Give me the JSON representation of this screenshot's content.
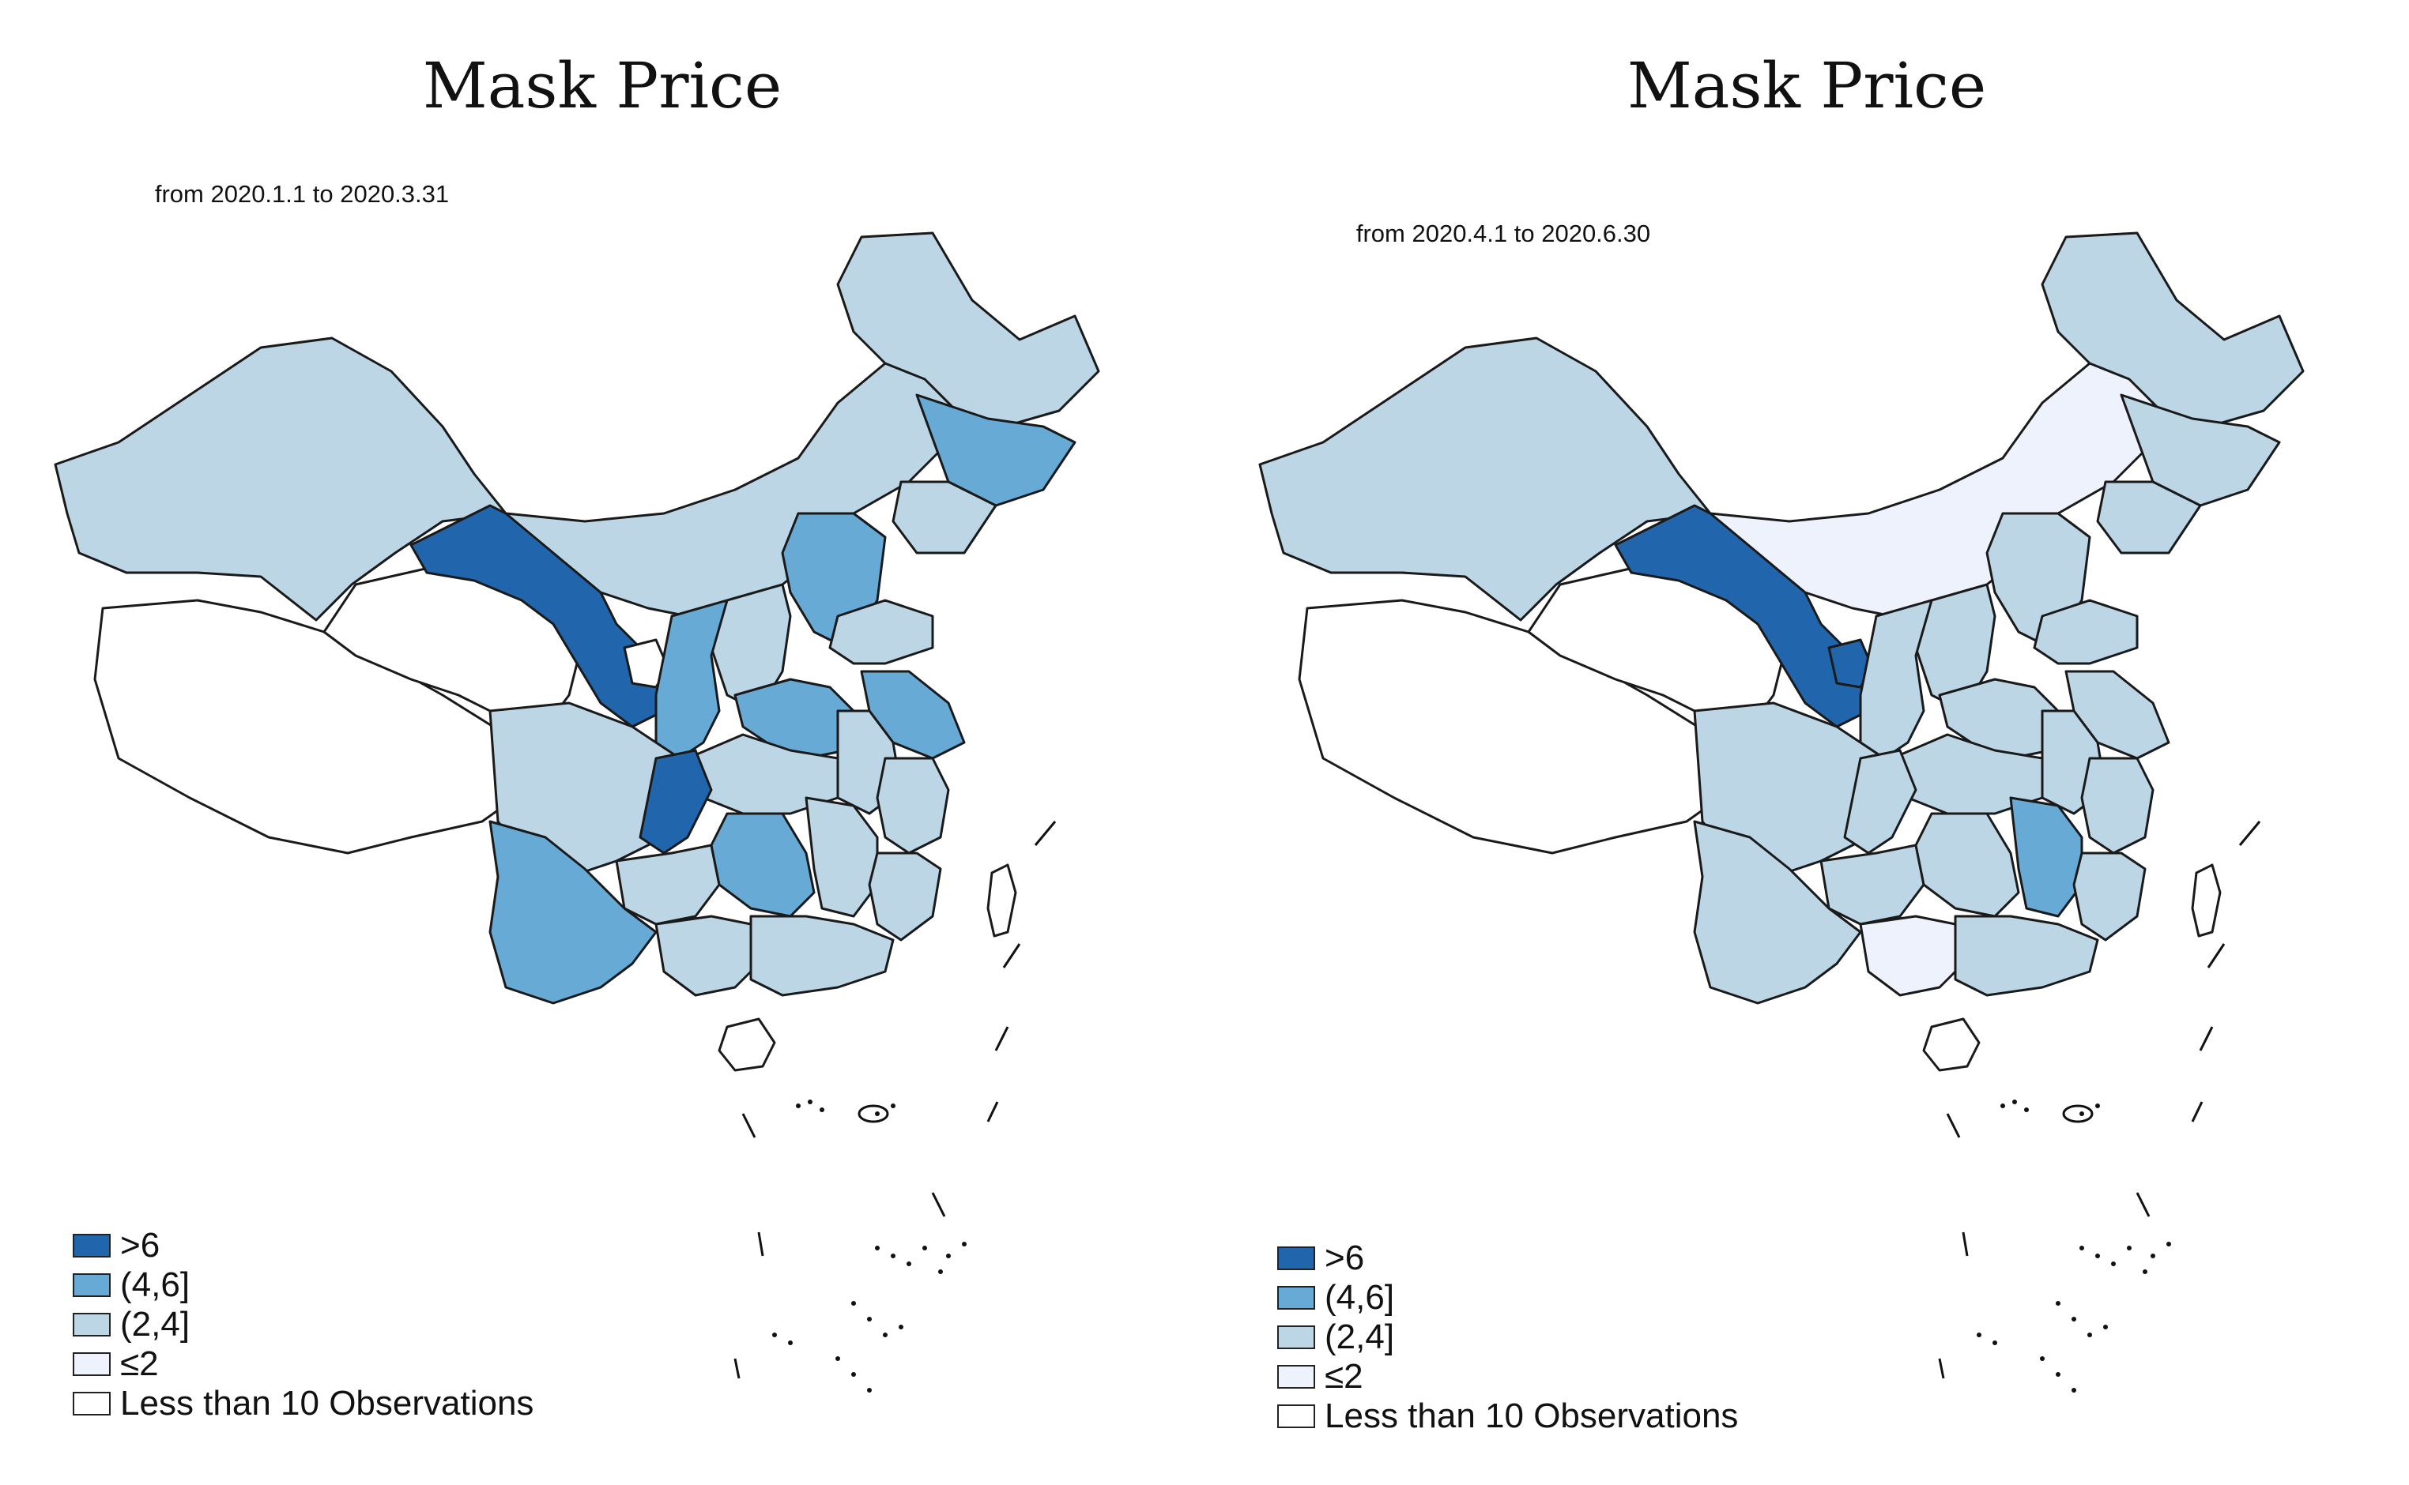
{
  "colors": {
    "gt6": "#2166ac",
    "4to6": "#67aad6",
    "2to4": "#bcd6e6",
    "le2": "#eef2fc",
    "few": "#ffffff",
    "border": "#1a1a1a"
  },
  "legend": [
    {
      "key": "gt6",
      "label": ">6"
    },
    {
      "key": "4to6",
      "label": "(4,6]"
    },
    {
      "key": "2to4",
      "label": "(2,4]"
    },
    {
      "key": "le2",
      "label": "≤2"
    },
    {
      "key": "few",
      "label": "Less than 10 Observations"
    }
  ],
  "panels": [
    {
      "title": "Mask Price",
      "subtitle": "from 2020.1.1 to 2020.3.31",
      "provinces": {
        "xinjiang": "2to4",
        "tibet": "few",
        "qinghai": "few",
        "gansu": "gt6",
        "inner_mongolia": "2to4",
        "heilongjiang": "2to4",
        "jilin": "4to6",
        "liaoning": "2to4",
        "beijing_hebei": "4to6",
        "shanxi": "2to4",
        "shaanxi": "4to6",
        "ningxia": "few",
        "henan": "4to6",
        "shandong": "2to4",
        "jiangsu": "4to6",
        "anhui": "2to4",
        "hubei": "2to4",
        "sichuan": "2to4",
        "chongqing": "gt6",
        "guizhou": "2to4",
        "yunnan": "4to6",
        "hunan": "4to6",
        "jiangxi": "2to4",
        "zhejiang": "2to4",
        "fujian": "2to4",
        "guangxi": "2to4",
        "guangdong": "2to4",
        "hainan": "few",
        "taiwan": "few"
      }
    },
    {
      "title": "Mask Price",
      "subtitle": "from 2020.4.1 to 2020.6.30",
      "provinces": {
        "xinjiang": "2to4",
        "tibet": "few",
        "qinghai": "few",
        "gansu": "gt6",
        "inner_mongolia": "le2",
        "heilongjiang": "2to4",
        "jilin": "2to4",
        "liaoning": "2to4",
        "beijing_hebei": "2to4",
        "shanxi": "2to4",
        "shaanxi": "2to4",
        "ningxia": "gt6",
        "henan": "2to4",
        "shandong": "2to4",
        "jiangsu": "2to4",
        "anhui": "2to4",
        "hubei": "2to4",
        "sichuan": "2to4",
        "chongqing": "2to4",
        "guizhou": "2to4",
        "yunnan": "2to4",
        "hunan": "2to4",
        "jiangxi": "4to6",
        "zhejiang": "2to4",
        "fujian": "2to4",
        "guangxi": "le2",
        "guangdong": "2to4",
        "hainan": "few",
        "taiwan": "few"
      }
    }
  ]
}
